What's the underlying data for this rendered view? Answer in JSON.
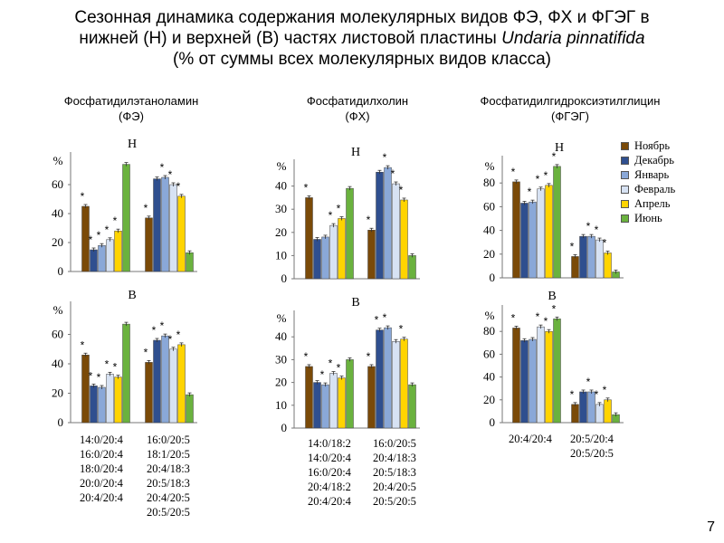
{
  "title": {
    "line1": "Сезонная динамика содержания молекулярных видов ФЭ, ФХ и ФГЭГ в",
    "line2": "нижней (Н) и верхней (В) частях листовой пластины",
    "line2_italic": "Undaria pinnatifida",
    "line3": "(% от суммы всех молекулярных видов класса)"
  },
  "page_number": "7",
  "legend": {
    "items": [
      {
        "label": "Ноябрь",
        "color": "#7a4a08"
      },
      {
        "label": "Декабрь",
        "color": "#2f4f8f"
      },
      {
        "label": "Январь",
        "color": "#8aa8d8"
      },
      {
        "label": "Февраль",
        "color": "#d7e2f3"
      },
      {
        "label": "Апрель",
        "color": "#ffd400"
      },
      {
        "label": "Июнь",
        "color": "#6ab23e"
      }
    ]
  },
  "sections": [
    {
      "name": "pe",
      "header_line1": "Фосфатидилэтаноламин",
      "header_line2": "(ФЭ)",
      "category_labels": [
        "14:0/20:4\n16:0/20:4\n18:0/20:4\n20:0/20:4\n20:4/20:4",
        "16:0/20:5\n18:1/20:5\n20:4/18:3\n20:5/18:3\n20:4/20:5\n20:5/20:5"
      ]
    },
    {
      "name": "pc",
      "header_line1": "Фосфатидилхолин",
      "header_line2": "(ФХ)",
      "category_labels": [
        "14:0/18:2\n14:0/20:4\n16:0/20:4\n20:4/18:2\n20:4/20:4",
        "16:0/20:5\n20:4/18:3\n20:5/18:3\n20:4/20:5\n20:5/20:5"
      ]
    },
    {
      "name": "dghe",
      "header_line1": "Фосфатидилгидроксиэтилглицин",
      "header_line2": "(ФГЭГ)",
      "category_labels": [
        "20:4/20:4",
        "20:5/20:4\n20:5/20:5"
      ]
    }
  ],
  "chart_data": [
    {
      "type": "bar",
      "id": "pe-n",
      "title": "Н",
      "ylabel": "%",
      "ylim": [
        0,
        80
      ],
      "yticks": [
        0,
        20,
        40,
        60
      ],
      "categories": [
        "14:0/20:4 16:0/20:4 18:0/20:4 20:0/20:4 20:4/20:4",
        "16:0/20:5 18:1/20:5 20:4/18:3 20:5/18:3 20:4/20:5 20:5/20:5"
      ],
      "series": [
        {
          "name": "Ноябрь",
          "values": [
            45,
            37
          ],
          "significant": [
            true,
            true
          ]
        },
        {
          "name": "Декабрь",
          "values": [
            15,
            64
          ],
          "significant": [
            true,
            false
          ]
        },
        {
          "name": "Январь",
          "values": [
            18,
            65
          ],
          "significant": [
            true,
            true
          ]
        },
        {
          "name": "Февраль",
          "values": [
            22,
            60
          ],
          "significant": [
            true,
            true
          ]
        },
        {
          "name": "Апрель",
          "values": [
            28,
            52
          ],
          "significant": [
            true,
            true
          ]
        },
        {
          "name": "Июнь",
          "values": [
            74,
            13
          ],
          "significant": [
            false,
            false
          ]
        }
      ]
    },
    {
      "type": "bar",
      "id": "pe-v",
      "title": "В",
      "ylabel": "%",
      "ylim": [
        0,
        80
      ],
      "yticks": [
        0,
        20,
        40,
        60
      ],
      "categories": [
        "14:0/20:4 16:0/20:4 18:0/20:4 20:0/20:4 20:4/20:4",
        "16:0/20:5 18:1/20:5 20:4/18:3 20:5/18:3 20:4/20:5 20:5/20:5"
      ],
      "series": [
        {
          "name": "Ноябрь",
          "values": [
            46,
            41
          ],
          "significant": [
            true,
            true
          ]
        },
        {
          "name": "Декабрь",
          "values": [
            25,
            56
          ],
          "significant": [
            true,
            true
          ]
        },
        {
          "name": "Январь",
          "values": [
            24,
            59
          ],
          "significant": [
            true,
            true
          ]
        },
        {
          "name": "Февраль",
          "values": [
            33,
            50
          ],
          "significant": [
            true,
            true
          ]
        },
        {
          "name": "Апрель",
          "values": [
            31,
            53
          ],
          "significant": [
            true,
            true
          ]
        },
        {
          "name": "Июнь",
          "values": [
            67,
            19
          ],
          "significant": [
            false,
            false
          ]
        }
      ]
    },
    {
      "type": "bar",
      "id": "pc-n",
      "title": "Н",
      "ylabel": "%",
      "ylim": [
        0,
        50
      ],
      "yticks": [
        0,
        10,
        20,
        30,
        40
      ],
      "categories": [
        "14:0/18:2 14:0/20:4 16:0/20:4 20:4/18:2 20:4/20:4",
        "16:0/20:5 20:4/18:3 20:5/18:3 20:4/20:5 20:5/20:5"
      ],
      "series": [
        {
          "name": "Ноябрь",
          "values": [
            35,
            21
          ],
          "significant": [
            true,
            true
          ]
        },
        {
          "name": "Декабрь",
          "values": [
            17,
            46
          ],
          "significant": [
            false,
            false
          ]
        },
        {
          "name": "Январь",
          "values": [
            18,
            48
          ],
          "significant": [
            false,
            true
          ]
        },
        {
          "name": "Февраль",
          "values": [
            23,
            41
          ],
          "significant": [
            true,
            true
          ]
        },
        {
          "name": "Апрель",
          "values": [
            26,
            34
          ],
          "significant": [
            true,
            true
          ]
        },
        {
          "name": "Июнь",
          "values": [
            39,
            10
          ],
          "significant": [
            false,
            false
          ]
        }
      ]
    },
    {
      "type": "bar",
      "id": "pc-v",
      "title": "В",
      "ylabel": "%",
      "ylim": [
        0,
        50
      ],
      "yticks": [
        0,
        10,
        20,
        30,
        40
      ],
      "categories": [
        "14:0/18:2 14:0/20:4 16:0/20:4 20:4/18:2 20:4/20:4",
        "16:0/20:5 20:4/18:3 20:5/18:3 20:4/20:5 20:5/20:5"
      ],
      "series": [
        {
          "name": "Ноябрь",
          "values": [
            27,
            27
          ],
          "significant": [
            true,
            true
          ]
        },
        {
          "name": "Декабрь",
          "values": [
            20,
            43
          ],
          "significant": [
            false,
            true
          ]
        },
        {
          "name": "Январь",
          "values": [
            19,
            44
          ],
          "significant": [
            true,
            true
          ]
        },
        {
          "name": "Февраль",
          "values": [
            24,
            38
          ],
          "significant": [
            true,
            false
          ]
        },
        {
          "name": "Апрель",
          "values": [
            22,
            39
          ],
          "significant": [
            true,
            true
          ]
        },
        {
          "name": "Июнь",
          "values": [
            30,
            19
          ],
          "significant": [
            false,
            false
          ]
        }
      ]
    },
    {
      "type": "bar",
      "id": "dghe-n",
      "title": "Н",
      "ylabel": "%",
      "ylim": [
        0,
        100
      ],
      "yticks": [
        0,
        20,
        40,
        60,
        80
      ],
      "categories": [
        "20:4/20:4",
        "20:5/20:4 20:5/20:5"
      ],
      "series": [
        {
          "name": "Ноябрь",
          "values": [
            81,
            18
          ],
          "significant": [
            true,
            true
          ]
        },
        {
          "name": "Декабрь",
          "values": [
            63,
            35
          ],
          "significant": [
            false,
            false
          ]
        },
        {
          "name": "Январь",
          "values": [
            64,
            35
          ],
          "significant": [
            true,
            true
          ]
        },
        {
          "name": "Февраль",
          "values": [
            75,
            32
          ],
          "significant": [
            true,
            true
          ]
        },
        {
          "name": "Апрель",
          "values": [
            78,
            21
          ],
          "significant": [
            true,
            true
          ]
        },
        {
          "name": "Июнь",
          "values": [
            94,
            5
          ],
          "significant": [
            true,
            false
          ]
        }
      ]
    },
    {
      "type": "bar",
      "id": "dghe-v",
      "title": "В",
      "ylabel": "%",
      "ylim": [
        0,
        100
      ],
      "yticks": [
        0,
        20,
        40,
        60,
        80
      ],
      "categories": [
        "20:4/20:4",
        "20:5/20:4 20:5/20:5"
      ],
      "series": [
        {
          "name": "Ноябрь",
          "values": [
            83,
            16
          ],
          "significant": [
            true,
            true
          ]
        },
        {
          "name": "Декабрь",
          "values": [
            72,
            27
          ],
          "significant": [
            false,
            false
          ]
        },
        {
          "name": "Январь",
          "values": [
            73,
            27
          ],
          "significant": [
            false,
            true
          ]
        },
        {
          "name": "Февраль",
          "values": [
            84,
            16
          ],
          "significant": [
            true,
            true
          ]
        },
        {
          "name": "Апрель",
          "values": [
            80,
            20
          ],
          "significant": [
            true,
            true
          ]
        },
        {
          "name": "Июнь",
          "values": [
            91,
            7
          ],
          "significant": [
            true,
            false
          ]
        }
      ]
    }
  ]
}
